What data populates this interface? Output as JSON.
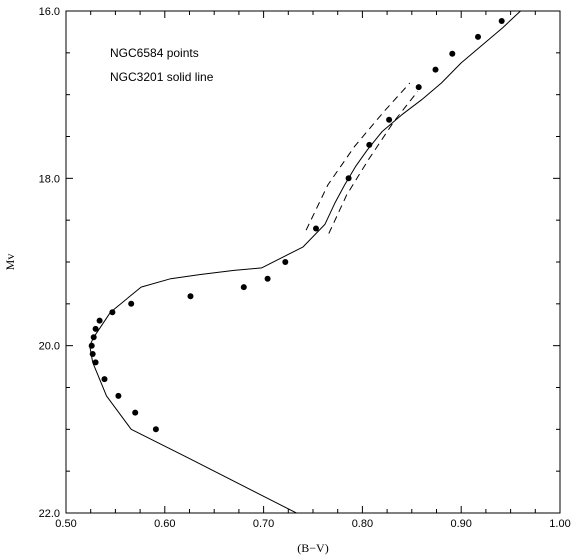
{
  "chart_data": {
    "type": "scatter",
    "title": "",
    "xlabel": "(B−V)",
    "ylabel": "Mv",
    "xlim": [
      0.5,
      1.0
    ],
    "ylim": [
      22.0,
      16.0
    ],
    "y_inverted": true,
    "grid": false,
    "x_ticks": [
      "0.50",
      "0.60",
      "0.70",
      "0.80",
      "0.90",
      "1.00"
    ],
    "y_ticks": [
      "16.0",
      "18.0",
      "20.0",
      "22.0"
    ],
    "annotations": [
      "NGC6584 points",
      "NGC3201 solid line"
    ],
    "series": [
      {
        "style": "points",
        "color": "#000000",
        "x": [
          0.941,
          0.917,
          0.891,
          0.874,
          0.857,
          0.827,
          0.807,
          0.786,
          0.753,
          0.722,
          0.704,
          0.68,
          0.626,
          0.566,
          0.547,
          0.534,
          0.53,
          0.528,
          0.526,
          0.527,
          0.53,
          0.539,
          0.553,
          0.57,
          0.591
        ],
        "y": [
          16.12,
          16.31,
          16.51,
          16.7,
          16.91,
          17.3,
          17.6,
          18.0,
          18.6,
          19.0,
          19.2,
          19.3,
          19.41,
          19.5,
          19.6,
          19.7,
          19.8,
          19.9,
          20.0,
          20.1,
          20.2,
          20.4,
          20.6,
          20.8,
          21.0
        ]
      },
      {
        "style": "solid",
        "color": "#000000",
        "x": [
          0.96,
          0.942,
          0.922,
          0.9,
          0.88,
          0.86,
          0.84,
          0.82,
          0.805,
          0.793,
          0.782,
          0.772,
          0.762,
          0.74,
          0.698,
          0.67,
          0.636,
          0.606,
          0.576,
          0.545,
          0.528,
          0.524,
          0.527,
          0.541,
          0.566,
          0.625,
          0.7,
          0.75
        ],
        "y": [
          16.0,
          16.2,
          16.4,
          16.62,
          16.86,
          17.06,
          17.24,
          17.44,
          17.66,
          17.86,
          18.08,
          18.3,
          18.55,
          18.82,
          19.07,
          19.1,
          19.15,
          19.2,
          19.3,
          19.6,
          19.9,
          20.0,
          20.2,
          20.6,
          21.0,
          21.35,
          21.8,
          22.1
        ]
      },
      {
        "style": "dashed",
        "color": "#000000",
        "x": [
          0.743,
          0.765,
          0.792,
          0.822,
          0.848
        ],
        "y": [
          18.62,
          18.08,
          17.62,
          17.2,
          16.86
        ]
      },
      {
        "style": "dashed",
        "color": "#000000",
        "x": [
          0.766,
          0.784,
          0.806,
          0.832,
          0.856
        ],
        "y": [
          18.66,
          18.2,
          17.78,
          17.32,
          16.96
        ]
      }
    ]
  }
}
